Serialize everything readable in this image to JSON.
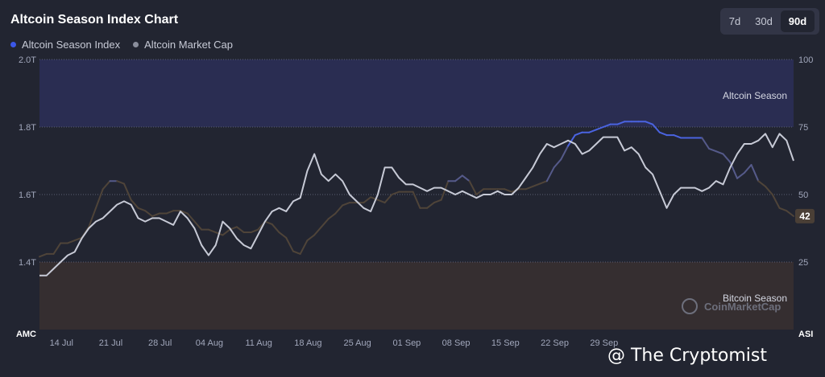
{
  "header": {
    "title": "Altcoin Season Index Chart",
    "ranges": [
      "7d",
      "30d",
      "90d"
    ],
    "active_range": "90d"
  },
  "legend": [
    {
      "label": "Altcoin Season Index",
      "color": "#3b57e8"
    },
    {
      "label": "Altcoin Market Cap",
      "color": "#8a8e9c"
    }
  ],
  "zones": {
    "altcoin_label": "Altcoin Season",
    "bitcoin_label": "Bitcoin Season"
  },
  "watermark": "CoinMarketCap",
  "footer_watermark": "@ The Cryptomist",
  "current_badge": "42",
  "colors": {
    "background": "#222531",
    "altcoin_zone": "#2a2d52",
    "bitcoin_zone": "#352e30",
    "index_line_blue": "#4a63e0",
    "index_line_mid": "#555a8a",
    "index_line_brown": "#4f4439",
    "marketcap_line": "#c7cad6"
  },
  "chart_data": {
    "type": "line",
    "title": "Altcoin Season Index Chart",
    "x_ticks": [
      "14 Jul",
      "21 Jul",
      "28 Jul",
      "04 Aug",
      "11 Aug",
      "18 Aug",
      "25 Aug",
      "01 Sep",
      "08 Sep",
      "15 Sep",
      "22 Sep",
      "29 Sep"
    ],
    "left_axis": {
      "label": "AMC",
      "ticks": [
        "1.4T",
        "1.6T",
        "1.8T",
        "2.0T"
      ],
      "ylim": [
        1.2,
        2.0
      ],
      "unit": "T"
    },
    "right_axis": {
      "label": "ASI",
      "ticks": [
        "25",
        "50",
        "75",
        "100"
      ],
      "ylim": [
        0,
        100
      ]
    },
    "zones": [
      {
        "name": "Altcoin Season",
        "from": 75,
        "to": 100
      },
      {
        "name": "Bitcoin Season",
        "from": 0,
        "to": 25
      }
    ],
    "grid": true,
    "series": [
      {
        "name": "Altcoin Season Index",
        "axis": "right",
        "x_start": "2024-07-11",
        "step_days": 1,
        "values": [
          27,
          28,
          28,
          32,
          32,
          33,
          34,
          38,
          45,
          52,
          55,
          55,
          54,
          48,
          45,
          44,
          42,
          43,
          43,
          44,
          44,
          43,
          40,
          37,
          37,
          36,
          35,
          37,
          38,
          36,
          36,
          37,
          40,
          39,
          36,
          34,
          29,
          28,
          33,
          35,
          38,
          41,
          43,
          46,
          47,
          47,
          47,
          49,
          48,
          47,
          50,
          51,
          51,
          51,
          45,
          45,
          47,
          48,
          55,
          55,
          57,
          55,
          50,
          52,
          52,
          52,
          52,
          51,
          52,
          52,
          53,
          54,
          55,
          60,
          63,
          68,
          72,
          73,
          73,
          74,
          75,
          76,
          76,
          77,
          77,
          77,
          77,
          76,
          73,
          72,
          72,
          71,
          71,
          71,
          71,
          67,
          66,
          65,
          62,
          56,
          58,
          61,
          55,
          53,
          50,
          45,
          44,
          42
        ]
      },
      {
        "name": "Altcoin Market Cap",
        "axis": "left",
        "x_start": "2024-07-11",
        "step_days": 1,
        "values": [
          1.36,
          1.36,
          1.38,
          1.4,
          1.42,
          1.43,
          1.47,
          1.5,
          1.52,
          1.53,
          1.55,
          1.57,
          1.58,
          1.57,
          1.53,
          1.52,
          1.53,
          1.53,
          1.52,
          1.51,
          1.55,
          1.53,
          1.5,
          1.45,
          1.42,
          1.45,
          1.52,
          1.5,
          1.47,
          1.45,
          1.44,
          1.48,
          1.52,
          1.55,
          1.56,
          1.55,
          1.58,
          1.59,
          1.67,
          1.72,
          1.66,
          1.64,
          1.66,
          1.64,
          1.6,
          1.58,
          1.56,
          1.55,
          1.6,
          1.68,
          1.68,
          1.65,
          1.63,
          1.63,
          1.62,
          1.61,
          1.62,
          1.62,
          1.61,
          1.6,
          1.61,
          1.6,
          1.59,
          1.6,
          1.6,
          1.61,
          1.6,
          1.6,
          1.62,
          1.65,
          1.68,
          1.72,
          1.75,
          1.74,
          1.75,
          1.76,
          1.75,
          1.72,
          1.73,
          1.75,
          1.77,
          1.77,
          1.77,
          1.73,
          1.74,
          1.72,
          1.68,
          1.66,
          1.61,
          1.56,
          1.6,
          1.62,
          1.62,
          1.62,
          1.61,
          1.62,
          1.64,
          1.63,
          1.68,
          1.72,
          1.75,
          1.75,
          1.76,
          1.78,
          1.74,
          1.78,
          1.76,
          1.7
        ]
      }
    ]
  }
}
